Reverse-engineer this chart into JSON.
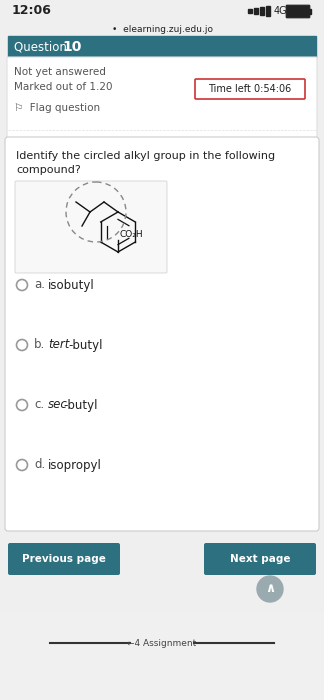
{
  "bg_color": "#efefef",
  "white": "#ffffff",
  "teal": "#2d7080",
  "light_gray": "#e0e0e0",
  "text_dark": "#222222",
  "text_gray": "#555555",
  "text_light": "#888888",
  "red_border": "#cc3333",
  "status_bar_time": "12:06",
  "url": "elearning.zuj.edu.jo",
  "question_label": "Question ",
  "question_number": "10",
  "not_answered": "Not yet answered",
  "marked_out": "Marked out of 1.20",
  "time_left": "Time left 0:54:06",
  "flag": "Flag question",
  "question_text_line1": "Identify the circled alkyl group in the following",
  "question_text_line2": "compound?",
  "options": [
    {
      "label": "a.",
      "text": "isobutyl",
      "italic": false
    },
    {
      "label": "b.",
      "text_normal": "",
      "text_italic": "tert",
      "text_suffix": "-butyl",
      "italic": true
    },
    {
      "label": "c.",
      "text_normal": "",
      "text_italic": "sec",
      "text_suffix": "-butyl",
      "italic": true
    },
    {
      "label": "d.",
      "text": "isopropyl",
      "italic": false
    }
  ],
  "btn_prev": "Previous page",
  "btn_next": "Next page",
  "footer_text": "Assignment"
}
